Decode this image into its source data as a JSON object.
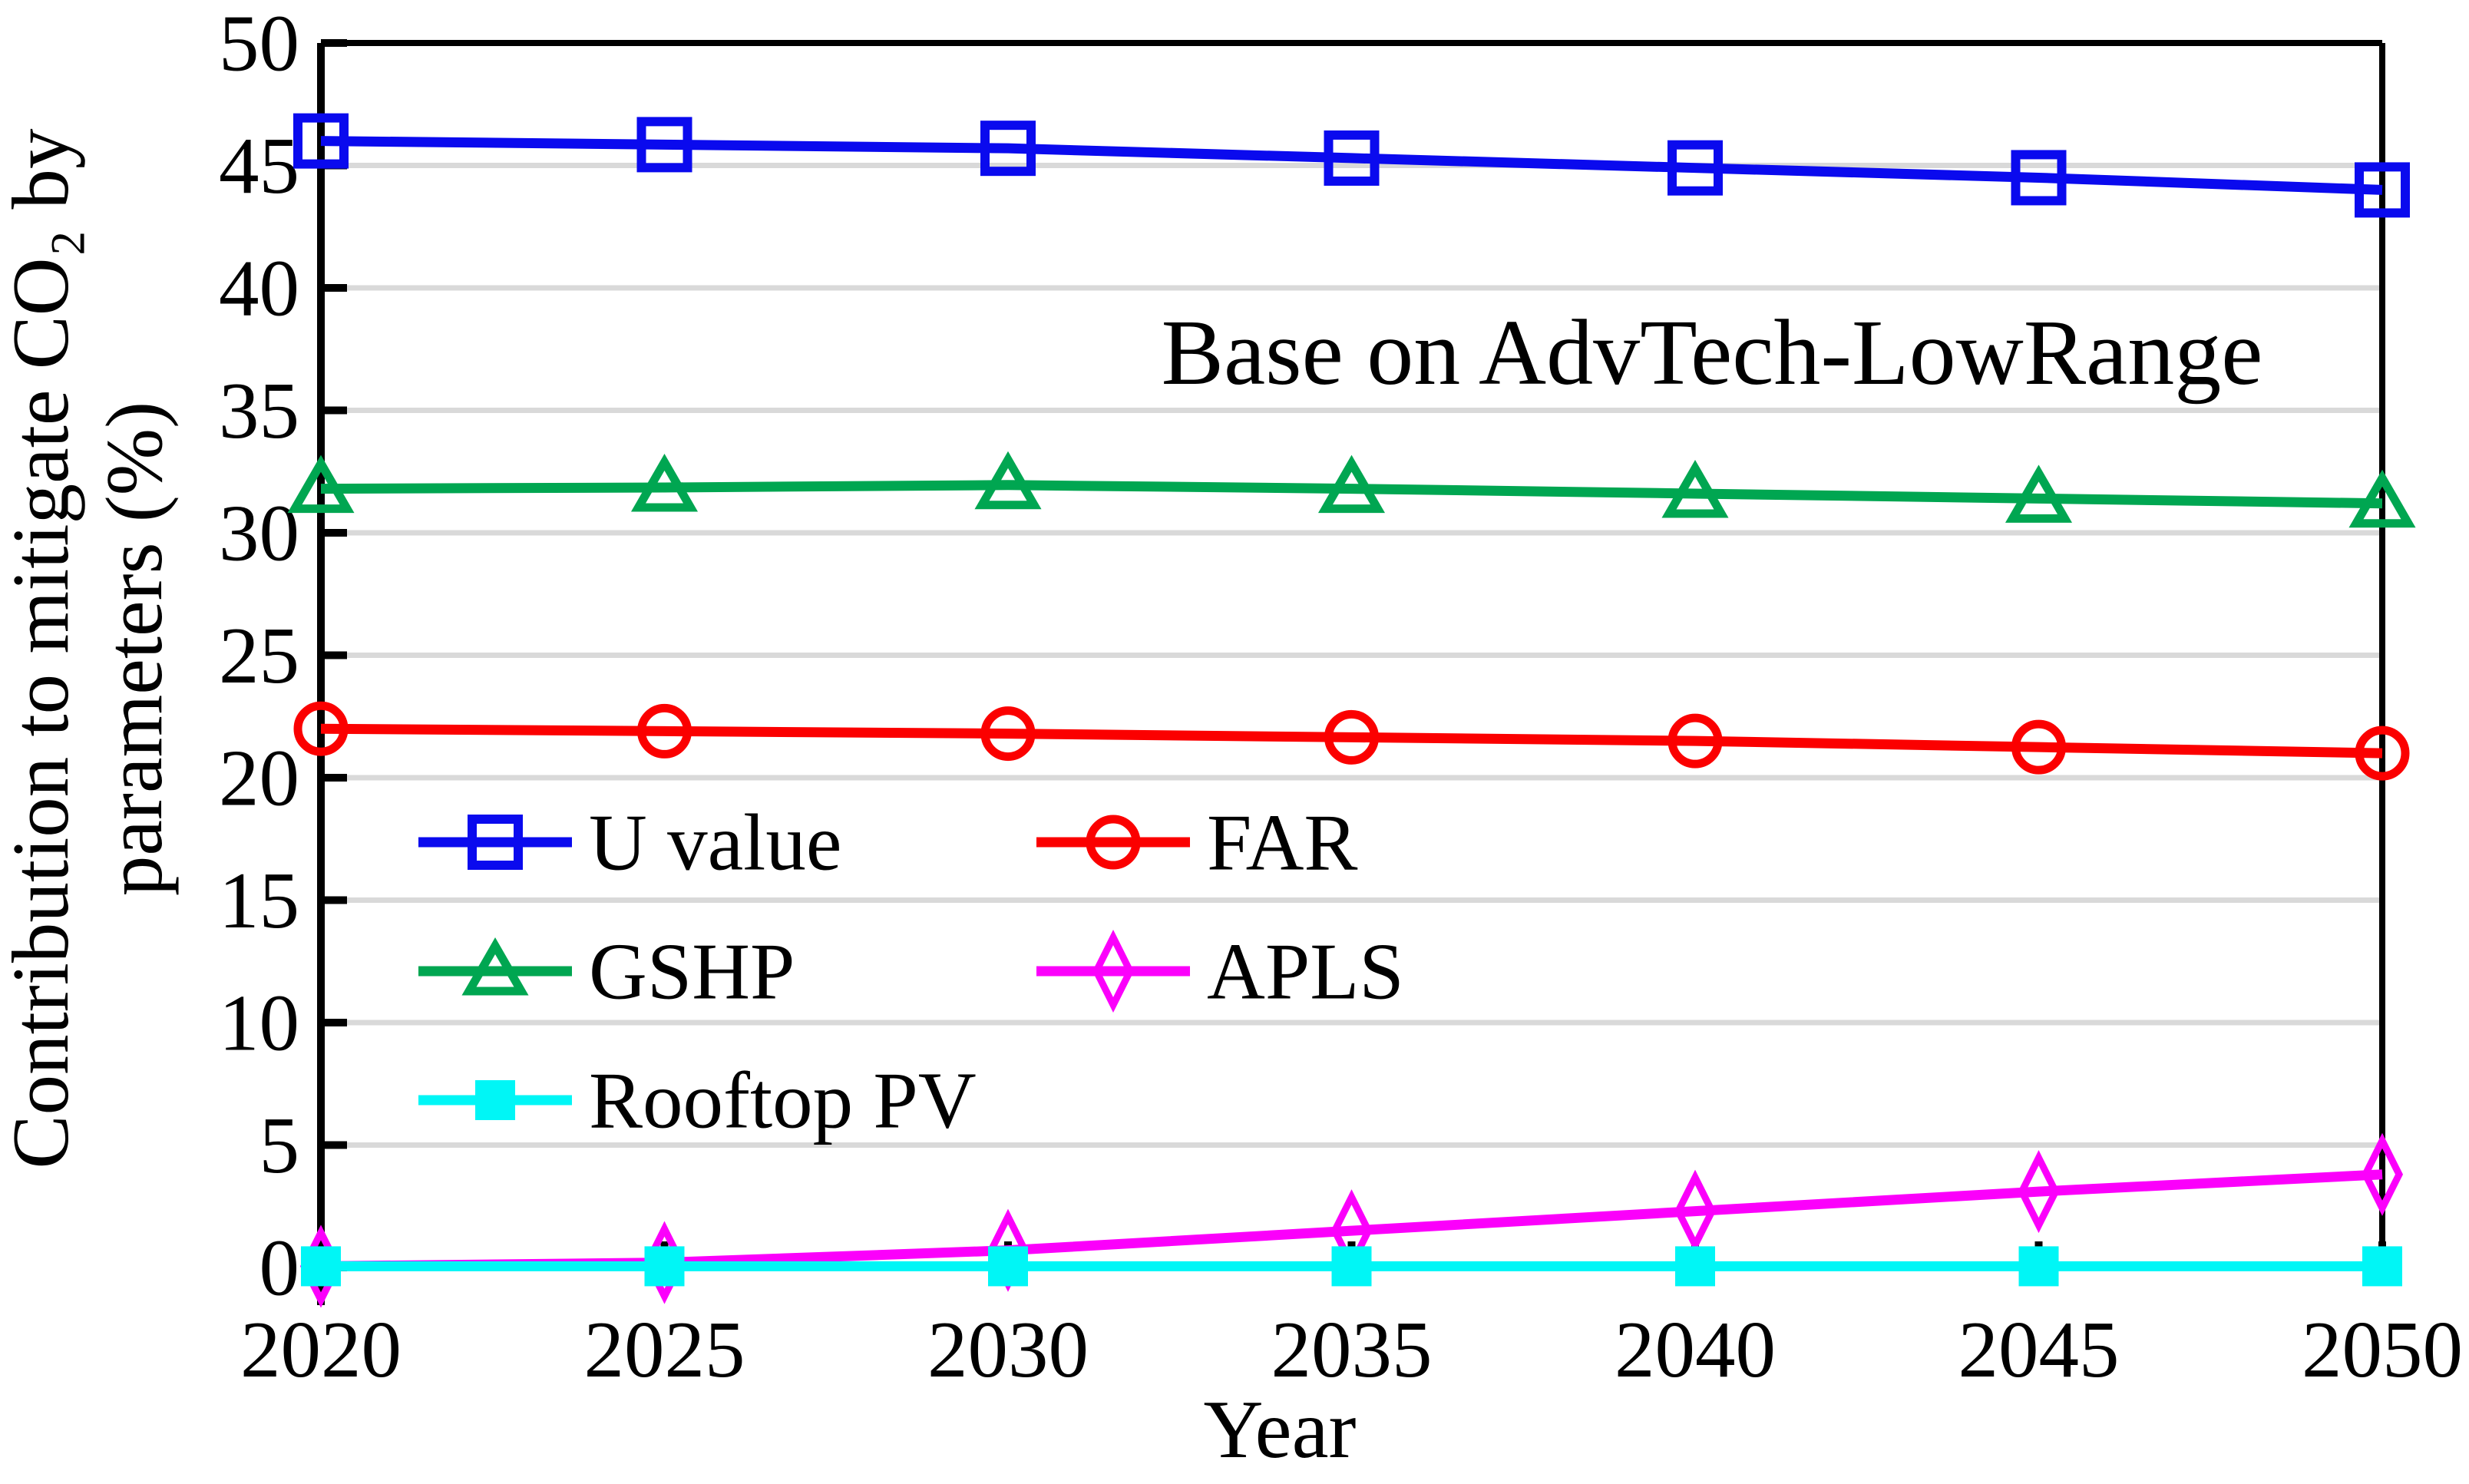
{
  "figure": {
    "annotation": "Base on AdvTech-LowRange",
    "x_axis_title": "Year",
    "y_axis_title_lines": [
      "Contribution to mitigate CO₂ by",
      "parameters (%)"
    ]
  },
  "chart_data": {
    "type": "line",
    "title": "Base on AdvTech-LowRange",
    "xlabel": "Year",
    "ylabel": "Contribution to mitigate CO2 by parameters (%)",
    "x": [
      2020,
      2025,
      2030,
      2035,
      2040,
      2045,
      2050
    ],
    "xlim": [
      2020,
      2050
    ],
    "ylim": [
      0,
      50
    ],
    "ytick_step": 5,
    "grid": "horizontal",
    "gridline_color": "#d9d9d9",
    "axis_color": "#000000",
    "legend_position": "inside-left-middle",
    "legend_columns": 2,
    "series": [
      {
        "name": "U value",
        "color": "#0a0aee",
        "marker": "square-open",
        "values": [
          46.0,
          45.85,
          45.7,
          45.3,
          44.9,
          44.5,
          44.0
        ]
      },
      {
        "name": "FAR",
        "color": "#fb0000",
        "marker": "circle-open",
        "values": [
          22.0,
          21.9,
          21.8,
          21.65,
          21.5,
          21.25,
          21.0
        ]
      },
      {
        "name": "GSHP",
        "color": "#00a651",
        "marker": "triangle-open",
        "values": [
          31.8,
          31.85,
          31.95,
          31.8,
          31.6,
          31.4,
          31.2
        ]
      },
      {
        "name": "APLS",
        "color": "#fb00fb",
        "marker": "diamond-open",
        "values": [
          0.05,
          0.2,
          0.7,
          1.5,
          2.3,
          3.1,
          3.8
        ]
      },
      {
        "name": "Rooftop PV",
        "color": "#00f6f6",
        "marker": "square-filled",
        "values": [
          0.05,
          0.05,
          0.05,
          0.05,
          0.05,
          0.05,
          0.05
        ]
      }
    ]
  }
}
